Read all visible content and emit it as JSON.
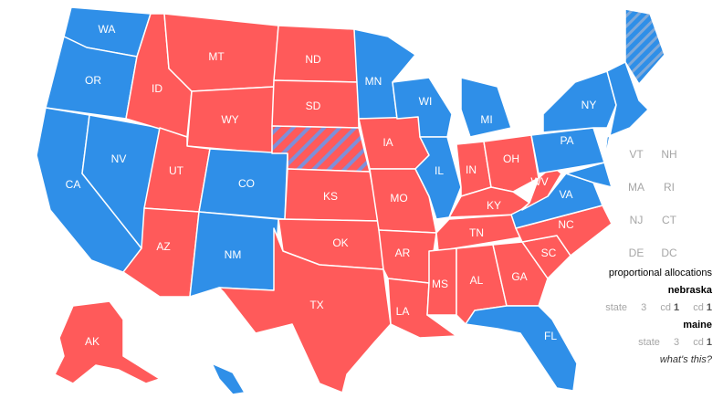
{
  "colors": {
    "dem": "#2f8fe8",
    "rep": "#ff5a5a",
    "text_gray": "#a6a6a6"
  },
  "states": {
    "WA": {
      "label": "WA",
      "party": "dem"
    },
    "OR": {
      "label": "OR",
      "party": "dem"
    },
    "CA": {
      "label": "CA",
      "party": "dem"
    },
    "NV": {
      "label": "NV",
      "party": "dem"
    },
    "ID": {
      "label": "ID",
      "party": "rep"
    },
    "MT": {
      "label": "MT",
      "party": "rep"
    },
    "WY": {
      "label": "WY",
      "party": "rep"
    },
    "UT": {
      "label": "UT",
      "party": "rep"
    },
    "AZ": {
      "label": "AZ",
      "party": "rep"
    },
    "CO": {
      "label": "CO",
      "party": "dem"
    },
    "NM": {
      "label": "NM",
      "party": "dem"
    },
    "ND": {
      "label": "ND",
      "party": "rep"
    },
    "SD": {
      "label": "SD",
      "party": "rep"
    },
    "NE": {
      "label": "",
      "party": "rep",
      "split": true
    },
    "KS": {
      "label": "KS",
      "party": "rep"
    },
    "OK": {
      "label": "OK",
      "party": "rep"
    },
    "TX": {
      "label": "TX",
      "party": "rep"
    },
    "MN": {
      "label": "MN",
      "party": "dem"
    },
    "IA": {
      "label": "IA",
      "party": "rep"
    },
    "MO": {
      "label": "MO",
      "party": "rep"
    },
    "AR": {
      "label": "AR",
      "party": "rep"
    },
    "LA": {
      "label": "LA",
      "party": "rep"
    },
    "WI": {
      "label": "WI",
      "party": "dem"
    },
    "IL": {
      "label": "IL",
      "party": "dem"
    },
    "MI": {
      "label": "MI",
      "party": "dem"
    },
    "IN": {
      "label": "IN",
      "party": "rep"
    },
    "OH": {
      "label": "OH",
      "party": "rep"
    },
    "KY": {
      "label": "KY",
      "party": "rep"
    },
    "TN": {
      "label": "TN",
      "party": "rep"
    },
    "MS": {
      "label": "MS",
      "party": "rep"
    },
    "AL": {
      "label": "AL",
      "party": "rep"
    },
    "GA": {
      "label": "GA",
      "party": "rep"
    },
    "FL": {
      "label": "FL",
      "party": "dem"
    },
    "SC": {
      "label": "SC",
      "party": "rep"
    },
    "NC": {
      "label": "NC",
      "party": "rep"
    },
    "VA": {
      "label": "VA",
      "party": "dem"
    },
    "WV": {
      "label": "WV",
      "party": "rep"
    },
    "PA": {
      "label": "PA",
      "party": "dem"
    },
    "NY": {
      "label": "NY",
      "party": "dem"
    },
    "ME": {
      "label": "",
      "party": "dem",
      "split": true
    },
    "NE_new_england": {
      "label": "",
      "party": "dem"
    },
    "AK": {
      "label": "AK",
      "party": "rep"
    },
    "HI": {
      "label": "",
      "party": "dem"
    }
  },
  "small_states": {
    "vt": "VT",
    "nh": "NH",
    "ma": "MA",
    "ri": "RI",
    "nj": "NJ",
    "ct": "CT",
    "de": "DE",
    "dc": "DC"
  },
  "legend": {
    "title": "proportional allocations",
    "nebraska": {
      "heading": "nebraska",
      "state_text": "state",
      "state_num": "3",
      "cd1_text": "cd",
      "cd1_num": "1",
      "cd2_text": "cd",
      "cd2_num": "1"
    },
    "maine": {
      "heading": "maine",
      "state_text": "state",
      "state_num": "3",
      "cd1_text": "cd",
      "cd1_num": "1"
    },
    "whats_this": "what's this?"
  }
}
